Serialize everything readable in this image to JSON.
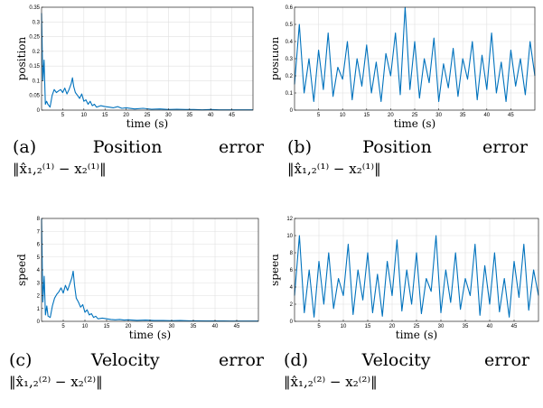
{
  "captions": [
    {
      "label": "(a)",
      "word1": "Position",
      "word2": "error",
      "formula": "‖x̂₁,₂⁽¹⁾ − x₂⁽¹⁾‖"
    },
    {
      "label": "(b)",
      "word1": "Position",
      "word2": "error",
      "formula": "‖x̂₁,₂⁽¹⁾ − x₂⁽¹⁾‖"
    },
    {
      "label": "(c)",
      "word1": "Velocity",
      "word2": "error",
      "formula": "‖x̂₁,₂⁽²⁾ − x₂⁽²⁾‖"
    },
    {
      "label": "(d)",
      "word1": "Velocity",
      "word2": "error",
      "formula": "‖x̂₁,₂⁽²⁾ − x₂⁽²⁾‖"
    }
  ],
  "colors": {
    "line": "#0072BD",
    "axis": "#262626",
    "grid": "#e0e0e0"
  },
  "chart_data": [
    {
      "type": "line",
      "xlabel": "time (s)",
      "ylabel": "position",
      "xlim": [
        0,
        50
      ],
      "ylim": [
        0,
        0.35
      ],
      "xticks": [
        5,
        10,
        15,
        20,
        25,
        30,
        35,
        40,
        45
      ],
      "yticks": [
        0,
        0.05,
        0.1,
        0.15,
        0.2,
        0.25,
        0.3,
        0.35
      ],
      "grid": true,
      "x": [
        0,
        0.3,
        0.6,
        0.9,
        1.2,
        1.5,
        2,
        2.5,
        3,
        3.5,
        4,
        4.5,
        5,
        5.5,
        6,
        6.5,
        7,
        7.3,
        7.6,
        8,
        8.5,
        9,
        9.5,
        10,
        10.5,
        11,
        11.5,
        12,
        12.5,
        13,
        14,
        15,
        16,
        17,
        18,
        19,
        20,
        22,
        24,
        26,
        28,
        30,
        32,
        34,
        36,
        38,
        40,
        42,
        44,
        46,
        48,
        50
      ],
      "values": [
        0.33,
        0.1,
        0.17,
        0.02,
        0.03,
        0.02,
        0.01,
        0.05,
        0.07,
        0.06,
        0.065,
        0.07,
        0.06,
        0.075,
        0.055,
        0.07,
        0.09,
        0.11,
        0.08,
        0.06,
        0.05,
        0.04,
        0.055,
        0.03,
        0.035,
        0.02,
        0.03,
        0.015,
        0.02,
        0.01,
        0.015,
        0.012,
        0.01,
        0.008,
        0.012,
        0.006,
        0.008,
        0.004,
        0.006,
        0.003,
        0.004,
        0.002,
        0.003,
        0.002,
        0.002,
        0.001,
        0.002,
        0.001,
        0.001,
        0.001,
        0.001,
        0.001
      ]
    },
    {
      "type": "line",
      "xlabel": "time (s)",
      "ylabel": "position",
      "xlim": [
        0,
        50
      ],
      "ylim": [
        0,
        0.6
      ],
      "xticks": [
        5,
        10,
        15,
        20,
        25,
        30,
        35,
        40,
        45
      ],
      "yticks": [
        0,
        0.1,
        0.2,
        0.3,
        0.4,
        0.5,
        0.6
      ],
      "grid": true,
      "x": [
        0,
        1,
        2,
        3,
        4,
        5,
        6,
        7,
        8,
        9,
        10,
        11,
        12,
        13,
        14,
        15,
        16,
        17,
        18,
        19,
        20,
        21,
        22,
        23,
        24,
        25,
        26,
        27,
        28,
        29,
        30,
        31,
        32,
        33,
        34,
        35,
        36,
        37,
        38,
        39,
        40,
        41,
        42,
        43,
        44,
        45,
        46,
        47,
        48,
        49,
        50
      ],
      "values": [
        0.15,
        0.5,
        0.1,
        0.3,
        0.05,
        0.35,
        0.12,
        0.45,
        0.08,
        0.25,
        0.18,
        0.4,
        0.06,
        0.3,
        0.14,
        0.38,
        0.1,
        0.28,
        0.05,
        0.33,
        0.2,
        0.45,
        0.09,
        0.6,
        0.12,
        0.4,
        0.07,
        0.3,
        0.16,
        0.42,
        0.05,
        0.27,
        0.13,
        0.36,
        0.08,
        0.3,
        0.18,
        0.4,
        0.06,
        0.32,
        0.12,
        0.45,
        0.1,
        0.28,
        0.05,
        0.35,
        0.14,
        0.3,
        0.09,
        0.4,
        0.2
      ]
    },
    {
      "type": "line",
      "xlabel": "time (s)",
      "ylabel": "speed",
      "xlim": [
        0,
        50
      ],
      "ylim": [
        0,
        8
      ],
      "xticks": [
        5,
        10,
        15,
        20,
        25,
        30,
        35,
        40,
        45
      ],
      "yticks": [
        0,
        1,
        2,
        3,
        4,
        5,
        6,
        7,
        8
      ],
      "grid": true,
      "x": [
        0,
        0.3,
        0.6,
        0.9,
        1.2,
        1.5,
        2,
        2.5,
        3,
        3.5,
        4,
        4.5,
        5,
        5.5,
        6,
        6.5,
        7,
        7.3,
        7.6,
        8,
        8.5,
        9,
        9.5,
        10,
        10.5,
        11,
        11.5,
        12,
        12.5,
        13,
        14,
        15,
        16,
        17,
        18,
        19,
        20,
        22,
        24,
        26,
        28,
        30,
        32,
        34,
        36,
        38,
        40,
        42,
        44,
        46,
        48,
        50
      ],
      "values": [
        8,
        1.5,
        3.5,
        0.5,
        1.2,
        0.4,
        0.3,
        1.2,
        1.8,
        2.1,
        2.3,
        2.6,
        2.2,
        2.8,
        2.4,
        2.9,
        3.4,
        3.9,
        2.8,
        1.8,
        1.5,
        1.1,
        1.3,
        0.7,
        0.9,
        0.5,
        0.6,
        0.3,
        0.4,
        0.2,
        0.25,
        0.2,
        0.15,
        0.12,
        0.15,
        0.1,
        0.12,
        0.08,
        0.1,
        0.06,
        0.07,
        0.05,
        0.06,
        0.04,
        0.04,
        0.03,
        0.03,
        0.03,
        0.02,
        0.02,
        0.02,
        0.02
      ]
    },
    {
      "type": "line",
      "xlabel": "time (s)",
      "ylabel": "speed",
      "xlim": [
        0,
        50
      ],
      "ylim": [
        0,
        12
      ],
      "xticks": [
        5,
        10,
        15,
        20,
        25,
        30,
        35,
        40,
        45
      ],
      "yticks": [
        0,
        2,
        4,
        6,
        8,
        10,
        12
      ],
      "grid": true,
      "x": [
        0,
        1,
        2,
        3,
        4,
        5,
        6,
        7,
        8,
        9,
        10,
        11,
        12,
        13,
        14,
        15,
        16,
        17,
        18,
        19,
        20,
        21,
        22,
        23,
        24,
        25,
        26,
        27,
        28,
        29,
        30,
        31,
        32,
        33,
        34,
        35,
        36,
        37,
        38,
        39,
        40,
        41,
        42,
        43,
        44,
        45,
        46,
        47,
        48,
        49,
        50
      ],
      "values": [
        3,
        10,
        1,
        6,
        0.5,
        7,
        2,
        8,
        1.5,
        5,
        3,
        9,
        0.8,
        6,
        2.5,
        8,
        1,
        5.5,
        0.6,
        7,
        3,
        9.5,
        1.2,
        6,
        2,
        8,
        0.9,
        5,
        3.5,
        10,
        1,
        6,
        2.2,
        8,
        1.4,
        5,
        3,
        9,
        0.7,
        6.5,
        2,
        8,
        1.1,
        5,
        0.5,
        7,
        2.8,
        9,
        1.3,
        6,
        3
      ]
    }
  ]
}
